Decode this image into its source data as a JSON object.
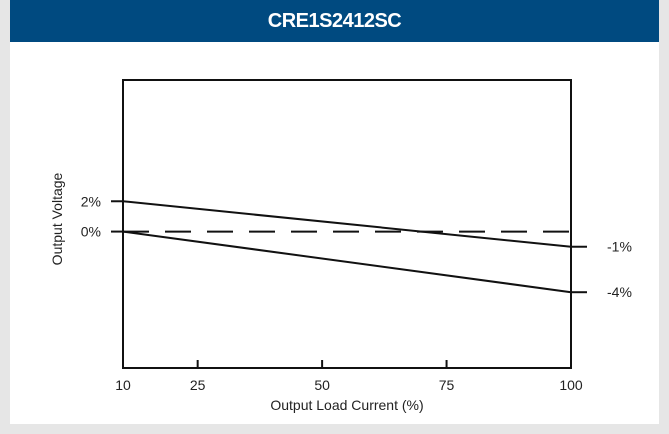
{
  "colors": {
    "header_bg": "#004a80",
    "header_text": "#ffffff",
    "frame": "#e6e6e6",
    "line": "#111111"
  },
  "chart_data": {
    "type": "line",
    "title": "CRE1S2412SC",
    "xlabel": "Output Load Current (%)",
    "ylabel": "Output Voltage",
    "xlim": [
      10,
      100
    ],
    "x_ticks": [
      10,
      25,
      50,
      75,
      100
    ],
    "x_tick_labels": [
      "10",
      "25",
      "50",
      "75",
      "100"
    ],
    "y_ticks": [
      2,
      0
    ],
    "y_tick_labels": [
      "2%",
      "0%"
    ],
    "right_labels": [
      "-1%",
      "-4%"
    ],
    "ylim": [
      -9,
      10
    ],
    "grid": false,
    "series": [
      {
        "style": "solid",
        "x": [
          10,
          100
        ],
        "y": [
          2,
          -1
        ]
      },
      {
        "style": "dashed",
        "x": [
          10,
          100
        ],
        "y": [
          0,
          0
        ]
      },
      {
        "style": "solid",
        "x": [
          10,
          100
        ],
        "y": [
          0,
          -4
        ]
      }
    ]
  }
}
